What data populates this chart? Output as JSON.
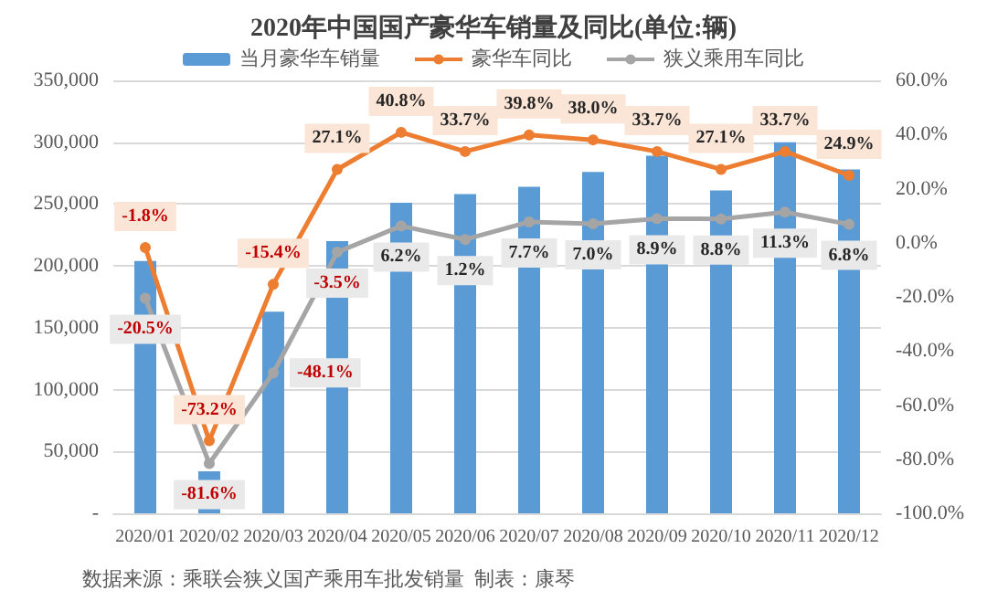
{
  "chart_data": {
    "type": "bar",
    "title": "2020年中国国产豪华车销量及同比(单位:辆)",
    "categories": [
      "2020/01",
      "2020/02",
      "2020/03",
      "2020/04",
      "2020/05",
      "2020/06",
      "2020/07",
      "2020/08",
      "2020/09",
      "2020/10",
      "2020/11",
      "2020/12"
    ],
    "series": [
      {
        "name": "当月豪华车销量",
        "color": "#5b9bd5",
        "values": [
          204000,
          34000,
          163000,
          220000,
          251000,
          258000,
          264000,
          276000,
          289000,
          261000,
          300000,
          278000
        ]
      },
      {
        "name": "豪华车同比",
        "type": "line",
        "axis": "y2",
        "color": "#ed7d31",
        "values": [
          -1.8,
          -73.2,
          -15.4,
          27.1,
          40.8,
          33.7,
          39.8,
          38.0,
          33.7,
          27.1,
          33.7,
          24.9
        ],
        "value_labels": [
          "-1.8%",
          "-73.2%",
          "-15.4%",
          "27.1%",
          "40.8%",
          "33.7%",
          "39.8%",
          "38.0%",
          "33.7%",
          "27.1%",
          "33.7%",
          "24.9%"
        ]
      },
      {
        "name": "狭义乘用车同比",
        "type": "line",
        "axis": "y2",
        "color": "#a5a5a5",
        "values": [
          -20.5,
          -81.6,
          -48.1,
          -3.5,
          6.2,
          1.2,
          7.7,
          7.0,
          8.9,
          8.8,
          11.3,
          6.8
        ],
        "value_labels": [
          "-20.5%",
          "-81.6%",
          "-48.1%",
          "-3.5%",
          "6.2%",
          "1.2%",
          "7.7%",
          "7.0%",
          "8.9%",
          "8.8%",
          "11.3%",
          "6.8%"
        ]
      }
    ],
    "ylim": [
      0,
      350000
    ],
    "yticks": [
      {
        "value": 0,
        "label": "-"
      },
      {
        "value": 50000,
        "label": "50,000"
      },
      {
        "value": 100000,
        "label": "100,000"
      },
      {
        "value": 150000,
        "label": "150,000"
      },
      {
        "value": 200000,
        "label": "200,000"
      },
      {
        "value": 250000,
        "label": "250,000"
      },
      {
        "value": 300000,
        "label": "300,000"
      },
      {
        "value": 350000,
        "label": "350,000"
      }
    ],
    "y2lim": [
      -100,
      60
    ],
    "y2ticks": [
      {
        "value": -100,
        "label": "-100.0%"
      },
      {
        "value": -80,
        "label": "-80.0%"
      },
      {
        "value": -60,
        "label": "-60.0%"
      },
      {
        "value": -40,
        "label": "-40.0%"
      },
      {
        "value": -20,
        "label": "-20.0%"
      },
      {
        "value": 0,
        "label": "0.0%"
      },
      {
        "value": 20,
        "label": "20.0%"
      },
      {
        "value": 40,
        "label": "40.0%"
      },
      {
        "value": 60,
        "label": "60.0%"
      }
    ],
    "grid": "y",
    "legend": "top",
    "marker": "circle",
    "annotations": [
      "数据来源：乘联会狭义国产乘用车批发销量  制表：康琴"
    ]
  }
}
